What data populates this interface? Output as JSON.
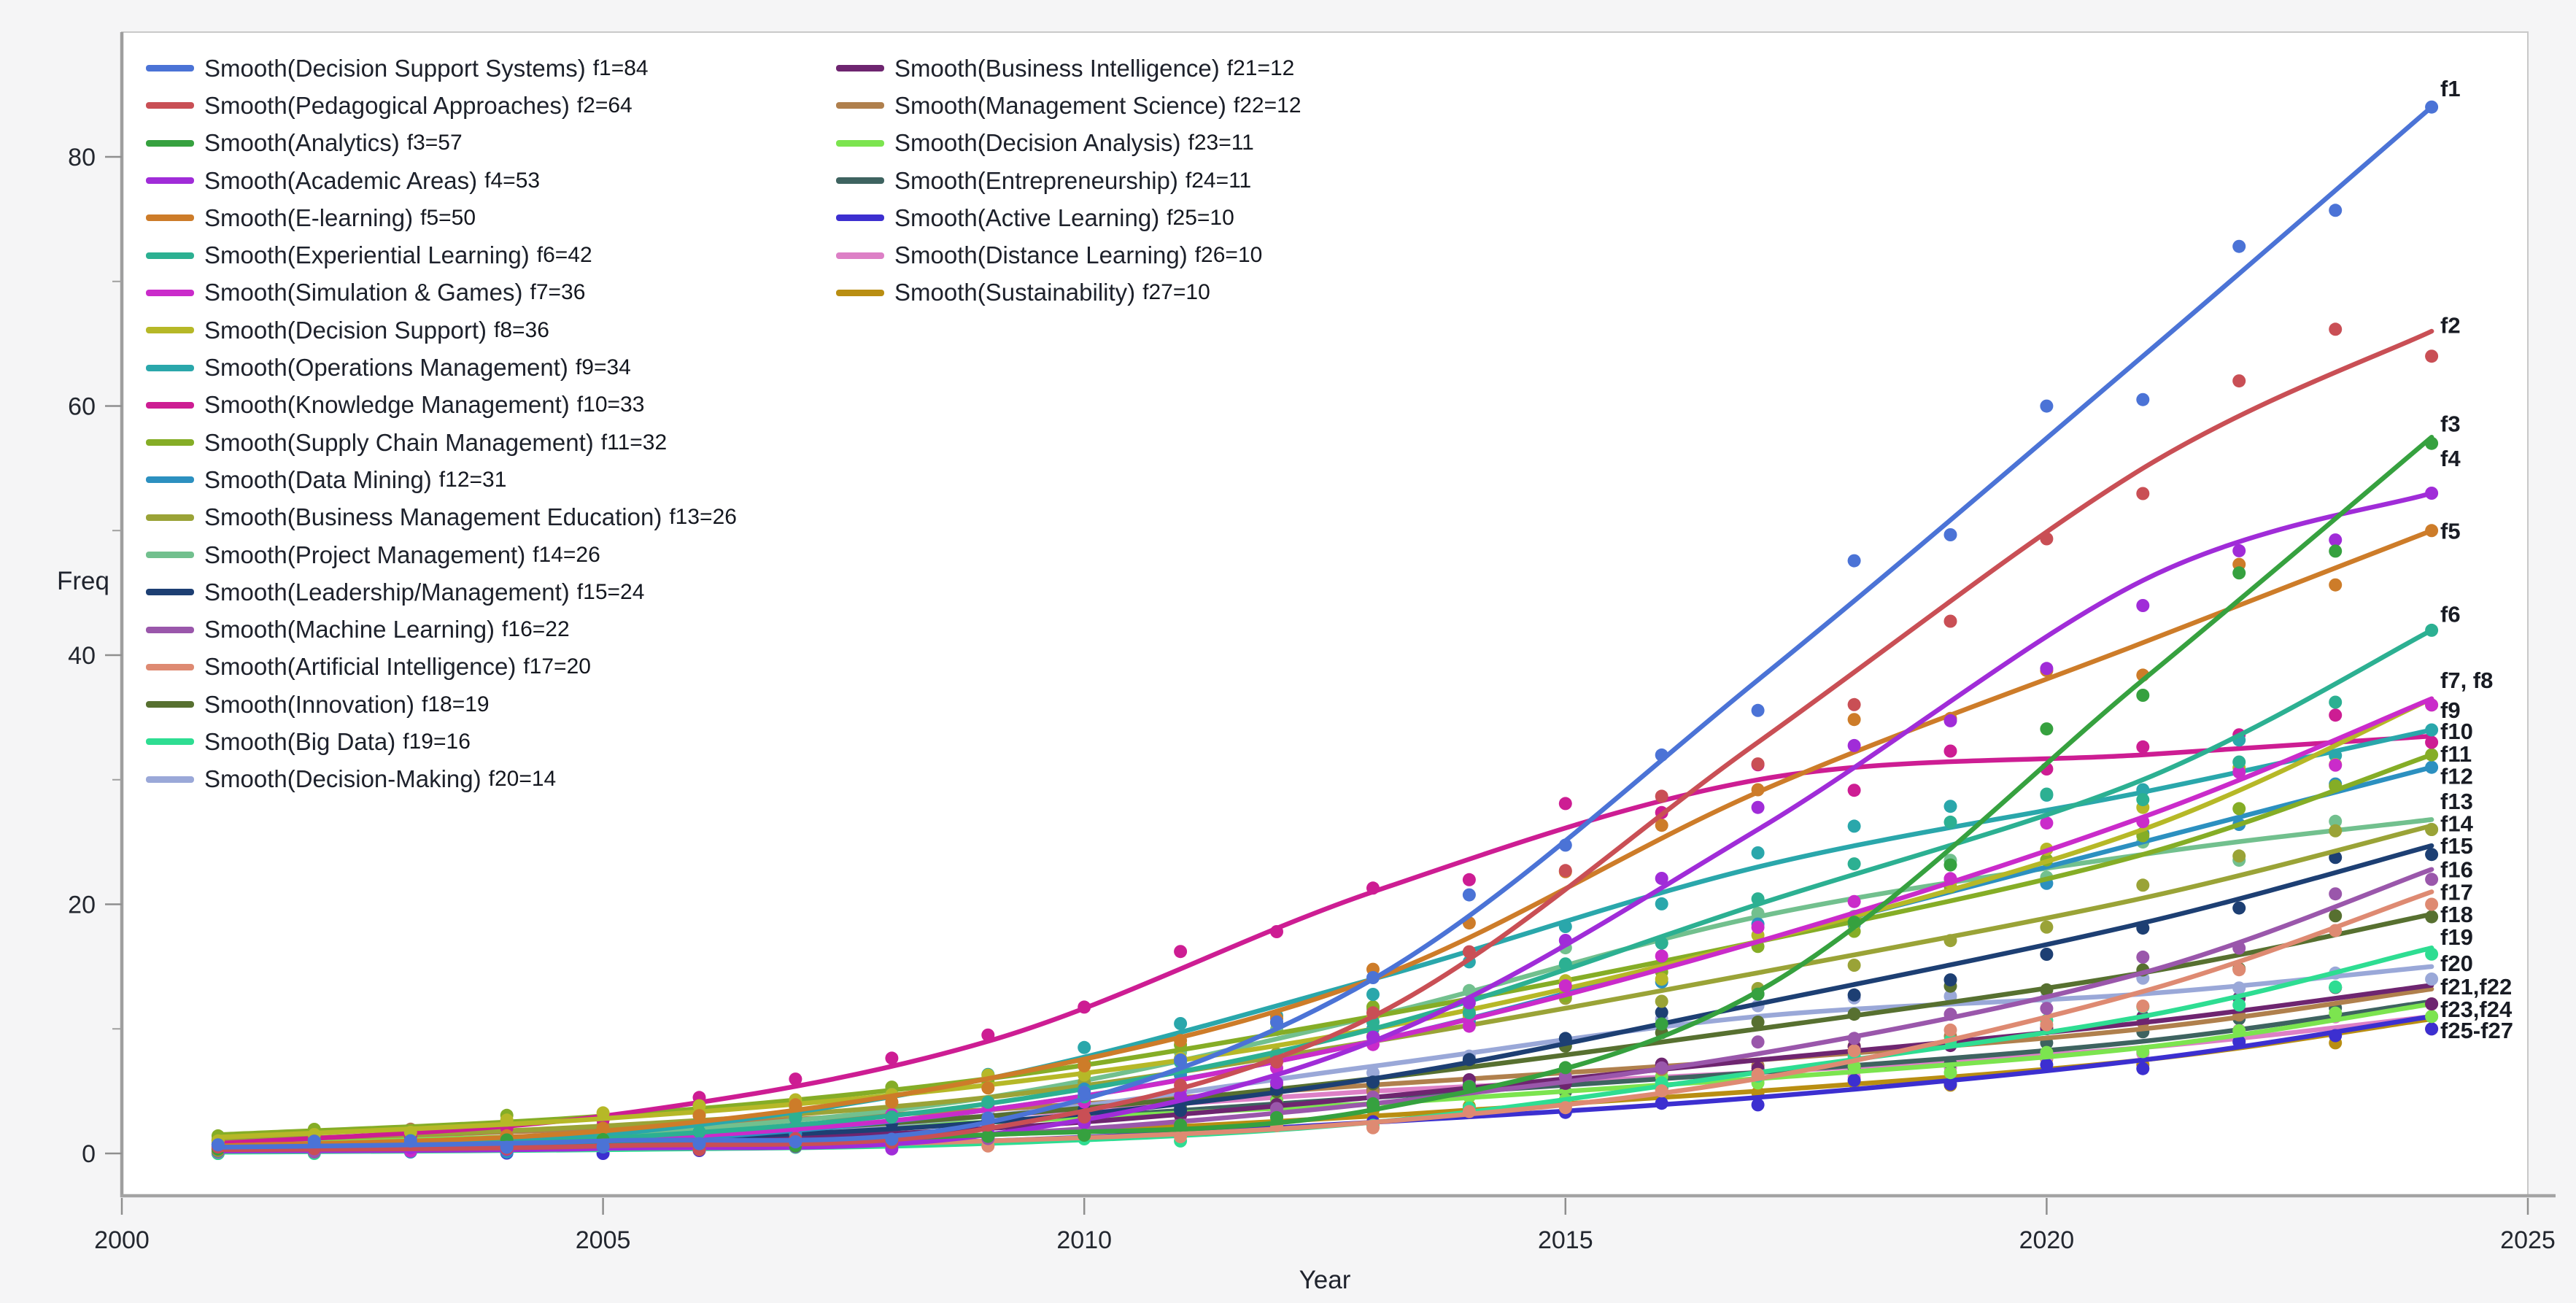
{
  "chart_data": {
    "type": "scatter+smooth-lines",
    "title": "",
    "x_axis": {
      "label": "Year",
      "range": [
        2000,
        2025
      ],
      "major_ticks": [
        2000,
        2005,
        2010,
        2015,
        2020,
        2025
      ]
    },
    "y_axis": {
      "label": "Freq",
      "range": [
        -3,
        90
      ],
      "major_ticks": [
        0,
        20,
        40,
        60,
        80
      ],
      "minor_ticks": [
        10,
        30,
        50,
        70
      ]
    },
    "grid": "off",
    "legend_position": "top-left, two columns",
    "first_year": 2001,
    "last_year": 2024,
    "anchor_years": [
      2001,
      2005,
      2009,
      2013,
      2017,
      2021,
      2024
    ],
    "scatter_jitter": [
      0.5,
      -0.7,
      0.9,
      0.2,
      -0.9,
      1.0,
      -0.3,
      0.6,
      -1.0,
      0.4,
      0.8,
      -0.6,
      0.1,
      1.1,
      -0.4,
      -0.8,
      0.7,
      1.2,
      -0.5,
      0.3,
      -1.1,
      0.9,
      -0.2,
      0.6
    ],
    "series": [
      {
        "id": "f1",
        "legend": "Smooth(Decision Support Systems)",
        "f_label": "f1=84",
        "final_value": 84,
        "color": "#4b73d6",
        "smooth": [
          0.5,
          1.0,
          2.5,
          14,
          38,
          64,
          84
        ]
      },
      {
        "id": "f2",
        "legend": "Smooth(Pedagogical Approaches)",
        "f_label": "f2=64",
        "final_value": 64,
        "color": "#c94f55",
        "smooth": [
          0.3,
          0.6,
          2.0,
          11,
          33,
          55,
          66
        ]
      },
      {
        "id": "f3",
        "legend": "Smooth(Analytics)",
        "f_label": "f3=57",
        "final_value": 57,
        "color": "#36a13f",
        "smooth": [
          0.5,
          0.8,
          1.5,
          3.5,
          13,
          38,
          57.5
        ]
      },
      {
        "id": "f4",
        "legend": "Smooth(Academic Areas)",
        "f_label": "f4=53",
        "final_value": 53,
        "color": "#a02cd8",
        "smooth": [
          0.2,
          0.4,
          1.5,
          9,
          26,
          46,
          53
        ]
      },
      {
        "id": "f5",
        "legend": "Smooth(E-learning)",
        "f_label": "f5=50",
        "final_value": 50,
        "color": "#cd7c29",
        "smooth": [
          0.6,
          1.8,
          6,
          14,
          29,
          41,
          50
        ]
      },
      {
        "id": "f6",
        "legend": "Smooth(Experiential Learning)",
        "f_label": "f6=42",
        "final_value": 42,
        "color": "#2cb092",
        "smooth": [
          0.4,
          1.2,
          4,
          10,
          20,
          30,
          42
        ]
      },
      {
        "id": "f7",
        "legend": "Smooth(Simulation & Games)",
        "f_label": "f7=36",
        "final_value": 36,
        "color": "#ca2bca",
        "smooth": [
          0.3,
          1.0,
          3.5,
          9,
          17,
          27,
          36.5
        ]
      },
      {
        "id": "f8",
        "legend": "Smooth(Decision Support)",
        "f_label": "f8=36",
        "final_value": 36,
        "color": "#b6b827",
        "smooth": [
          1.3,
          2.8,
          5.5,
          10,
          17,
          26,
          36.5
        ]
      },
      {
        "id": "f9",
        "legend": "Smooth(Operations Management)",
        "f_label": "f9=34",
        "final_value": 34,
        "color": "#2aa7ab",
        "smooth": [
          0.5,
          1.5,
          6,
          14,
          23,
          29,
          34
        ]
      },
      {
        "id": "f10",
        "legend": "Smooth(Knowledge Management)",
        "f_label": "f10=33",
        "final_value": 33,
        "color": "#cd1d93",
        "smooth": [
          0.8,
          3,
          9,
          21,
          30,
          32,
          33.5
        ]
      },
      {
        "id": "f11",
        "legend": "Smooth(Supply Chain Management)",
        "f_label": "f11=32",
        "final_value": 32,
        "color": "#85ad26",
        "smooth": [
          1.5,
          3,
          6,
          11,
          17,
          24,
          32
        ]
      },
      {
        "id": "f12",
        "legend": "Smooth(Data Mining)",
        "f_label": "f12=31",
        "final_value": 31,
        "color": "#2c90c0",
        "smooth": [
          0.3,
          0.8,
          3.5,
          9,
          17,
          25,
          31
        ]
      },
      {
        "id": "f13",
        "legend": "Smooth(Business Management Education)",
        "f_label": "f13=26",
        "final_value": 26,
        "color": "#9aa337",
        "smooth": [
          1.0,
          2.2,
          4.5,
          9,
          14.5,
          20.5,
          26.3
        ]
      },
      {
        "id": "f14",
        "legend": "Smooth(Project Management)",
        "f_label": "f14=26",
        "final_value": 26,
        "color": "#72c08e",
        "smooth": [
          0.5,
          1.5,
          4.5,
          11,
          19,
          24,
          26.8
        ]
      },
      {
        "id": "f15",
        "legend": "Smooth(Leadership/Management)",
        "f_label": "f15=24",
        "final_value": 24,
        "color": "#1d3f73",
        "smooth": [
          0.4,
          1.0,
          2.5,
          6,
          12,
          18.5,
          24.7
        ]
      },
      {
        "id": "f16",
        "legend": "Smooth(Machine Learning)",
        "f_label": "f16=22",
        "final_value": 22,
        "color": "#9a57ab",
        "smooth": [
          0.2,
          0.5,
          1.5,
          4,
          8,
          14.5,
          22.8
        ]
      },
      {
        "id": "f17",
        "legend": "Smooth(Artificial Intelligence)",
        "f_label": "f17=20",
        "final_value": 20,
        "color": "#de8a72",
        "smooth": [
          0.3,
          0.5,
          1.0,
          2.5,
          6,
          13,
          21
        ]
      },
      {
        "id": "f18",
        "legend": "Smooth(Innovation)",
        "f_label": "f18=19",
        "final_value": 19,
        "color": "#577030",
        "smooth": [
          0.5,
          1.2,
          3,
          6,
          10,
          14.5,
          19.2
        ]
      },
      {
        "id": "f19",
        "legend": "Smooth(Big Data)",
        "f_label": "f19=16",
        "final_value": 16,
        "color": "#2edd92",
        "smooth": [
          0.1,
          0.3,
          0.8,
          2.5,
          6.5,
          11,
          16.5
        ]
      },
      {
        "id": "f20",
        "legend": "Smooth(Decision-Making)",
        "f_label": "f20=14",
        "final_value": 14,
        "color": "#9aa8d8",
        "smooth": [
          0.5,
          1.2,
          3,
          7,
          11,
          12.8,
          15
        ]
      },
      {
        "id": "f21",
        "legend": "Smooth(Business Intelligence)",
        "f_label": "f21=12",
        "final_value": 12,
        "color": "#6e2570",
        "smooth": [
          0.3,
          0.8,
          2,
          4.5,
          7.5,
          10.5,
          13.5
        ]
      },
      {
        "id": "f22",
        "legend": "Smooth(Management Science)",
        "f_label": "f22=12",
        "final_value": 12,
        "color": "#b0804d",
        "smooth": [
          1.0,
          2.0,
          3.5,
          5.5,
          7.5,
          10,
          13.2
        ]
      },
      {
        "id": "f23",
        "legend": "Smooth(Decision Analysis)",
        "f_label": "f23=11",
        "final_value": 11,
        "color": "#7ce44f",
        "smooth": [
          0.8,
          1.5,
          2.5,
          4,
          6,
          8.5,
          12
        ]
      },
      {
        "id": "f24",
        "legend": "Smooth(Entrepreneurship)",
        "f_label": "f24=11",
        "final_value": 11,
        "color": "#3e6360",
        "smooth": [
          0.6,
          1.3,
          2.5,
          4.5,
          6.5,
          9,
          12.2
        ]
      },
      {
        "id": "f25",
        "legend": "Smooth(Active Learning)",
        "f_label": "f25=10",
        "final_value": 10,
        "color": "#3c2fd0",
        "smooth": [
          0.2,
          0.4,
          1,
          2.5,
          4.5,
          7.5,
          11
        ]
      },
      {
        "id": "f26",
        "legend": "Smooth(Distance Learning)",
        "f_label": "f26=10",
        "final_value": 10,
        "color": "#dd80c6",
        "smooth": [
          0.7,
          1.5,
          3,
          5,
          6.5,
          8.5,
          11
        ]
      },
      {
        "id": "f27",
        "legend": "Smooth(Sustainability)",
        "f_label": "f27=10",
        "final_value": 10,
        "color": "#b98e12",
        "smooth": [
          0.5,
          0.8,
          1.5,
          3,
          5,
          7.5,
          10.8
        ]
      }
    ],
    "annotations": [
      {
        "text": "f1",
        "v": 85.5
      },
      {
        "text": "f2",
        "v": 66.5
      },
      {
        "text": "f3",
        "v": 58.6
      },
      {
        "text": "f4",
        "v": 55.8
      },
      {
        "text": "f5",
        "v": 50.0
      },
      {
        "text": "f6",
        "v": 43.3
      },
      {
        "text": "f7, f8",
        "v": 38.0
      },
      {
        "text": "f9",
        "v": 35.6
      },
      {
        "text": "f10",
        "v": 33.9
      },
      {
        "text": "f11",
        "v": 32.1
      },
      {
        "text": "f12",
        "v": 30.3
      },
      {
        "text": "f13",
        "v": 28.3
      },
      {
        "text": "f14",
        "v": 26.5
      },
      {
        "text": "f15",
        "v": 24.7
      },
      {
        "text": "f16",
        "v": 22.8
      },
      {
        "text": "f17",
        "v": 21.0
      },
      {
        "text": "f18",
        "v": 19.2
      },
      {
        "text": "f19",
        "v": 17.4
      },
      {
        "text": "f20",
        "v": 15.3
      },
      {
        "text": "f21,f22",
        "v": 13.4
      },
      {
        "text": "f23,f24",
        "v": 11.6
      },
      {
        "text": "f25-f27",
        "v": 9.9
      }
    ]
  },
  "legend": {
    "column_split": 20
  }
}
